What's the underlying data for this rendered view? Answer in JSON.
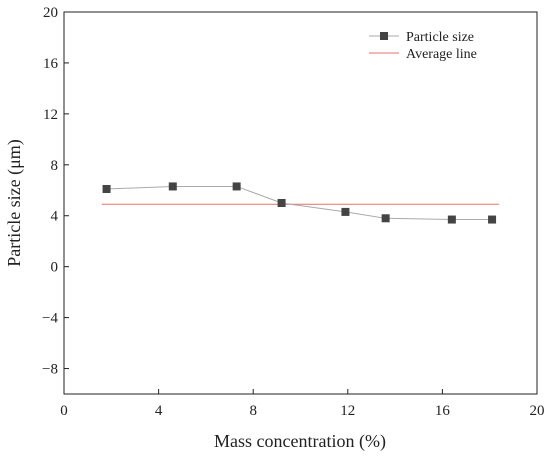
{
  "chart_data": {
    "type": "line",
    "title": "",
    "xlabel": "Mass concentration (%)",
    "ylabel": "Particle size (μm)",
    "xlim": [
      0,
      20
    ],
    "ylim": [
      -10,
      20
    ],
    "xticks": [
      0,
      4,
      8,
      12,
      16,
      20
    ],
    "xtick_labels": [
      "0",
      "4",
      "8",
      "12",
      "16",
      "20"
    ],
    "yticks": [
      -8,
      -4,
      0,
      4,
      8,
      12,
      16,
      20
    ],
    "ytick_labels": [
      "−8",
      "−4",
      "0",
      "4",
      "8",
      "12",
      "16",
      "20"
    ],
    "grid": false,
    "legend_position": "top-right",
    "series": [
      {
        "name": "Particle size",
        "style": "line-square-markers",
        "x": [
          1.8,
          4.6,
          7.3,
          9.2,
          11.9,
          13.6,
          16.4,
          18.1
        ],
        "y": [
          6.1,
          6.3,
          6.3,
          5.0,
          4.3,
          3.8,
          3.7,
          3.7
        ],
        "line_color": "#aaaaaa",
        "marker_color": "#444444"
      },
      {
        "name": "Average line",
        "style": "line",
        "x": [
          1.6,
          18.4
        ],
        "y": [
          4.9,
          4.9
        ],
        "line_color": "#e8706a"
      }
    ]
  }
}
